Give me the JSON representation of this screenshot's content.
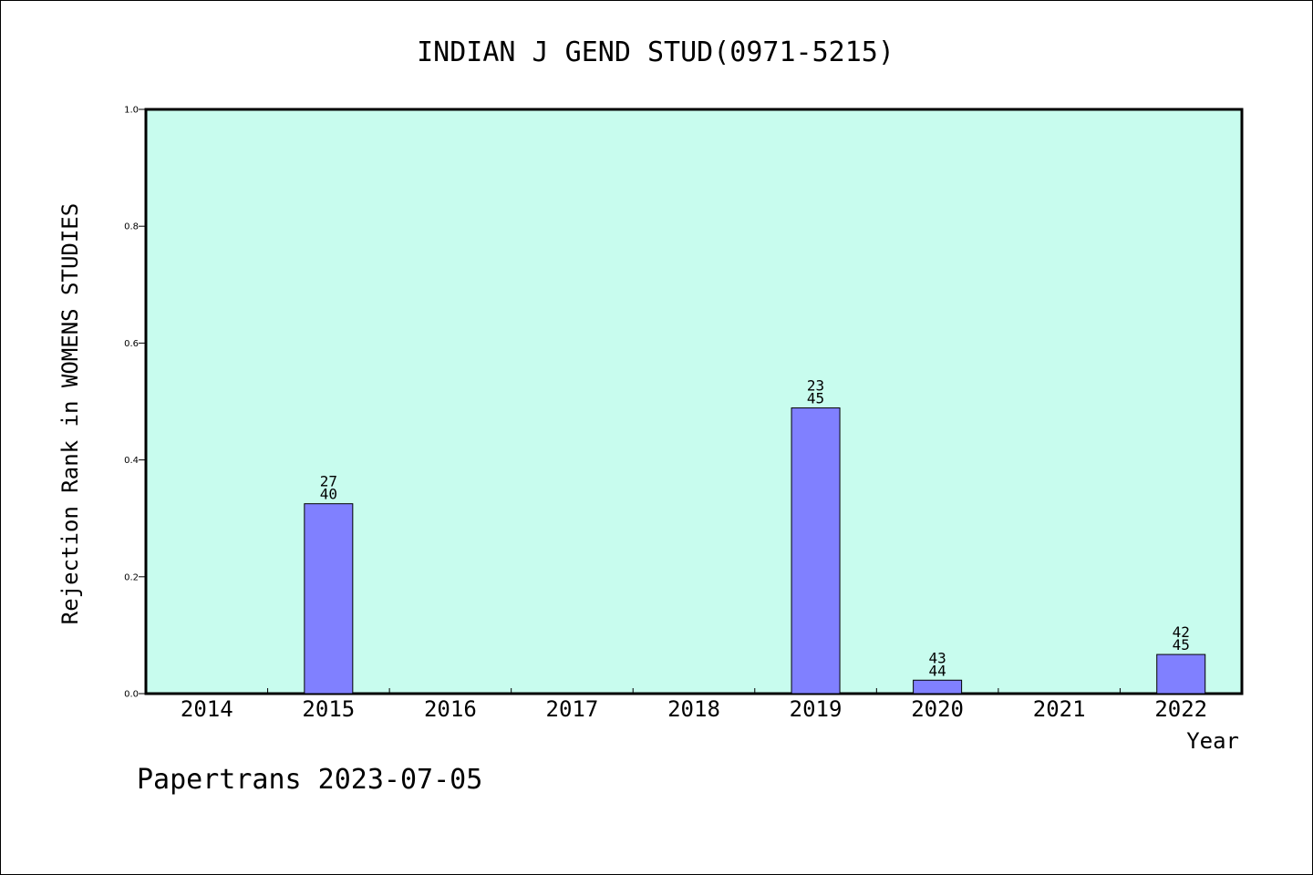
{
  "chart_data": {
    "type": "bar",
    "title": "INDIAN J GEND STUD(0971-5215)",
    "xlabel": "Year",
    "ylabel": "Rejection Rank in WOMENS STUDIES",
    "ylim": [
      0,
      1.0
    ],
    "yticks": [
      "0.0",
      "0.2",
      "0.4",
      "0.6",
      "0.8",
      "1.0"
    ],
    "categories": [
      "2014",
      "2015",
      "2016",
      "2017",
      "2018",
      "2019",
      "2020",
      "2021",
      "2022"
    ],
    "values": [
      null,
      0.325,
      null,
      null,
      null,
      0.489,
      0.023,
      null,
      0.067
    ],
    "bar_labels": [
      null,
      {
        "rank": "27",
        "total": "40"
      },
      null,
      null,
      null,
      {
        "rank": "23",
        "total": "45"
      },
      {
        "rank": "43",
        "total": "44"
      },
      null,
      {
        "rank": "42",
        "total": "45"
      }
    ],
    "grid": false,
    "colors": {
      "plot_background": "#c8fcee",
      "bar_fill": "#8080ff",
      "bar_stroke": "#000000"
    }
  },
  "footer": "Papertrans 2023-07-05"
}
